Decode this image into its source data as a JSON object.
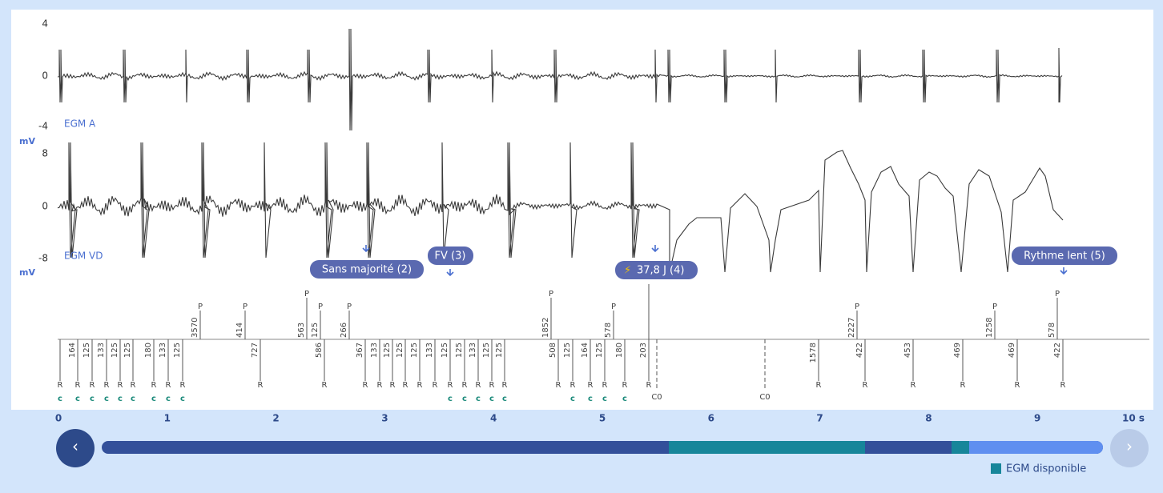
{
  "egm_a": {
    "label": "EGM A",
    "unit": "mV",
    "yticks": [
      4,
      0,
      -4
    ]
  },
  "egm_vd": {
    "label": "EGM VD",
    "unit": "mV",
    "yticks": [
      8,
      0,
      -8
    ]
  },
  "annotations": [
    {
      "label": "Sans majorité (2)"
    },
    {
      "label": "FV (3)"
    },
    {
      "icon": "⚡",
      "label": "37,8 J (4)"
    },
    {
      "label": "Rythme lent (5)"
    }
  ],
  "marker_channel": {
    "p_events": [
      {
        "marker": "P",
        "interval": 3570
      },
      {
        "marker": "P",
        "interval": 414
      },
      {
        "marker": "P",
        "interval": 563
      },
      {
        "marker": "P",
        "interval": 125
      },
      {
        "marker": "P",
        "interval": 266
      },
      {
        "marker": "P",
        "interval": 1852
      },
      {
        "marker": "P",
        "interval": 578
      },
      {
        "marker": "P",
        "interval": 2227
      },
      {
        "marker": "P",
        "interval": 1258
      },
      {
        "marker": "P",
        "interval": 578
      }
    ],
    "r_events": [
      {
        "marker": "R",
        "sense": "c"
      },
      {
        "marker": "R",
        "interval": 164,
        "sense": "c"
      },
      {
        "marker": "R",
        "interval": 125,
        "sense": "c"
      },
      {
        "marker": "R",
        "interval": 133,
        "sense": "c"
      },
      {
        "marker": "R",
        "interval": 125,
        "sense": "c"
      },
      {
        "marker": "R",
        "interval": 125,
        "sense": "c"
      },
      {
        "marker": "R",
        "interval": 180,
        "sense": "c"
      },
      {
        "marker": "R",
        "interval": 133,
        "sense": "c"
      },
      {
        "marker": "R",
        "interval": 125,
        "sense": "c"
      },
      {
        "marker": "R",
        "interval": 727
      },
      {
        "marker": "R",
        "interval": 586
      },
      {
        "marker": "R",
        "interval": 367
      },
      {
        "marker": "R",
        "interval": 133
      },
      {
        "marker": "R",
        "interval": 125
      },
      {
        "marker": "R",
        "interval": 125
      },
      {
        "marker": "R",
        "interval": 125
      },
      {
        "marker": "R",
        "interval": 133
      },
      {
        "marker": "R",
        "interval": 125,
        "sense": "c"
      },
      {
        "marker": "R",
        "interval": 125,
        "sense": "c"
      },
      {
        "marker": "R",
        "interval": 133,
        "sense": "c"
      },
      {
        "marker": "R",
        "interval": 125,
        "sense": "c"
      },
      {
        "marker": "R",
        "interval": 125,
        "sense": "c"
      },
      {
        "marker": "R",
        "interval": 508
      },
      {
        "marker": "R",
        "interval": 125,
        "sense": "c"
      },
      {
        "marker": "R",
        "interval": 164,
        "sense": "c"
      },
      {
        "marker": "R",
        "interval": 125,
        "sense": "c"
      },
      {
        "marker": "R",
        "interval": 180,
        "sense": "c"
      },
      {
        "marker": "R",
        "interval": 203
      },
      {
        "marker": "R",
        "interval": 1578
      },
      {
        "marker": "R",
        "interval": 422
      },
      {
        "marker": "R",
        "interval": 453
      },
      {
        "marker": "R",
        "interval": 469
      },
      {
        "marker": "R",
        "interval": 469
      },
      {
        "marker": "R",
        "interval": 422
      }
    ],
    "c0_events": [
      "C0",
      "C0"
    ]
  },
  "time_axis": {
    "ticks": [
      0,
      1,
      2,
      3,
      4,
      5,
      6,
      7,
      8,
      9,
      "10 s"
    ]
  },
  "legend": {
    "label": "EGM disponible"
  },
  "navigation": {
    "previous": "‹",
    "next": "›"
  }
}
